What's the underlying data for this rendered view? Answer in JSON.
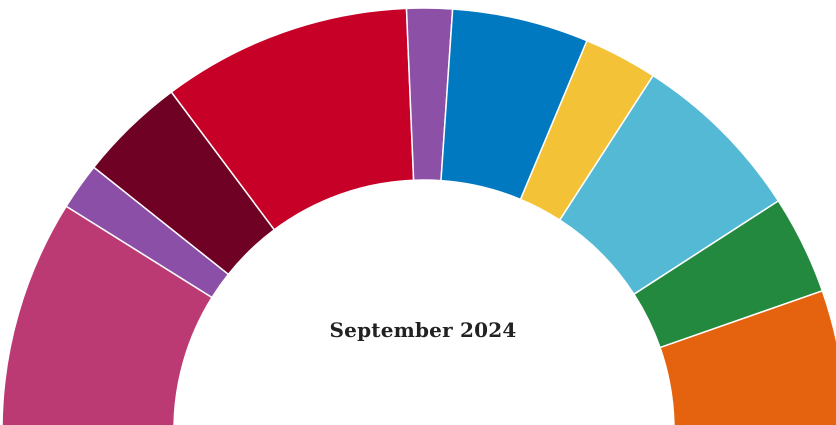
{
  "chart_data": {
    "type": "pie",
    "label": "September 2024",
    "series": [
      {
        "value": 14.8,
        "color": "#bb3a73"
      },
      {
        "value": 3.0,
        "color": "#8c4fa8"
      },
      {
        "value": 6.8,
        "color": "#6f0125"
      },
      {
        "value": 15.9,
        "color": "#c70028"
      },
      {
        "value": 2.9,
        "color": "#8c50a6"
      },
      {
        "value": 8.7,
        "color": "#0079c0"
      },
      {
        "value": 4.7,
        "color": "#f3c237"
      },
      {
        "value": 11.2,
        "color": "#54b9d4"
      },
      {
        "value": 6.3,
        "color": "#23893f"
      },
      {
        "value": 8.9,
        "color": "#e5620e"
      }
    ]
  }
}
